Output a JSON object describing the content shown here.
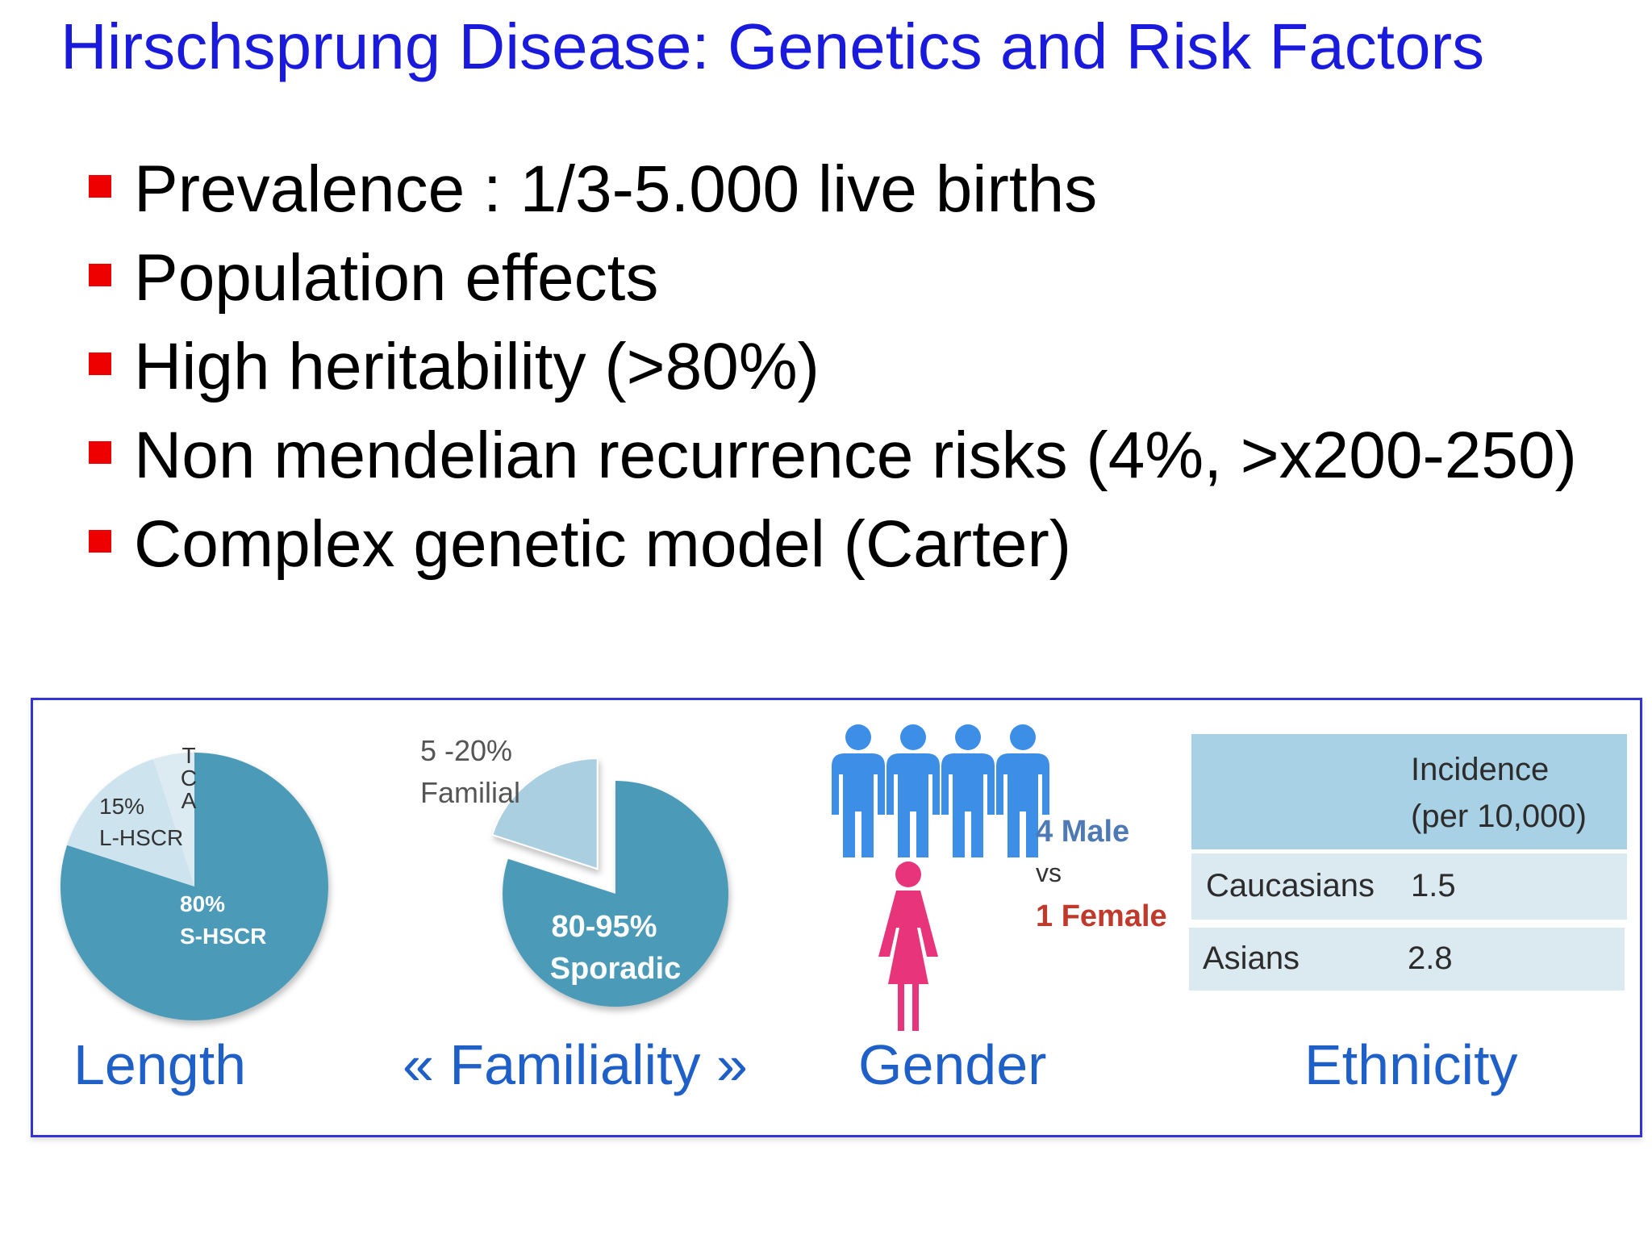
{
  "title": "Hirschsprung Disease: Genetics and Risk Factors",
  "bullets": [
    "Prevalence : 1/3-5.000 live births",
    "Population effects",
    "High heritability (>80%)",
    "Non mendelian recurrence risks (4%, >x200-250)",
    "Complex genetic model (Carter)"
  ],
  "colors": {
    "title": "#1a1adc",
    "bullet_marker": "#ee0000",
    "pie_main": "#4c9bb8",
    "pie_light": "#cde3ee",
    "caption": "#1f5fc8",
    "male": "#3d8ee6",
    "female": "#e8347a"
  },
  "panels": {
    "length": {
      "caption": "Length",
      "tca_letters": [
        "T",
        "C",
        "A"
      ],
      "l_pct": "15%",
      "l_label": "L-HSCR",
      "s_pct": "80%",
      "s_label": "S-HSCR"
    },
    "familiality": {
      "caption": "« Familiality »",
      "familial_pct": "5 -20%",
      "familial_label": "Familial",
      "sporadic_pct": "80-95%",
      "sporadic_label": "Sporadic"
    },
    "gender": {
      "caption": "Gender",
      "male_text": "4 Male",
      "vs_text": "vs",
      "female_text": "1 Female",
      "male_icon": "male-person-icon",
      "female_icon": "female-person-icon"
    },
    "ethnicity": {
      "caption": "Ethnicity",
      "header_line1": "Incidence",
      "header_line2": "(per 10,000)",
      "rows": [
        {
          "group": "Caucasians",
          "value": "1.5"
        },
        {
          "group": "Asians",
          "value": "2.8"
        }
      ]
    }
  },
  "chart_data": [
    {
      "type": "pie",
      "categories": [
        "S-HSCR",
        "L-HSCR",
        "TCA"
      ],
      "values": [
        80,
        15,
        5
      ],
      "labels": [
        "80%",
        "15%",
        ""
      ]
    },
    {
      "type": "pie",
      "categories": [
        "Sporadic",
        "Familial"
      ],
      "values": [
        80,
        20
      ],
      "labels": [
        "80-95%",
        "5 -20%"
      ]
    },
    {
      "type": "table",
      "columns": [
        "",
        "Incidence (per 10,000)"
      ],
      "rows": [
        [
          "Caucasians",
          1.5
        ],
        [
          "Asians",
          2.8
        ]
      ]
    }
  ]
}
